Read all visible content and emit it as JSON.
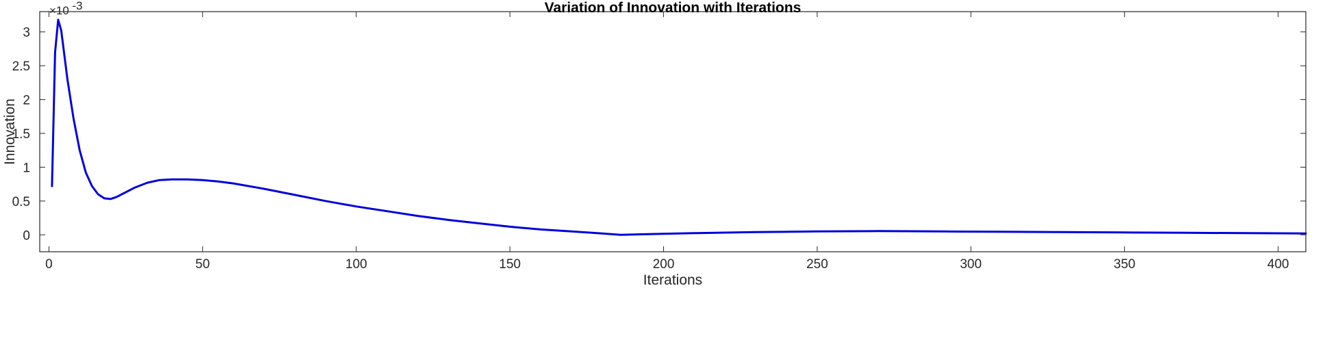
{
  "chart_data": {
    "type": "line",
    "title": "Variation of Innovation with Iterations",
    "xlabel": "Iterations",
    "ylabel": "Innovation",
    "y_multiplier": {
      "base": "×10",
      "exponent": "-3"
    },
    "xlim": [
      -3,
      409
    ],
    "ylim": [
      -0.25,
      3.3
    ],
    "xticks": [
      0,
      50,
      100,
      150,
      200,
      250,
      300,
      350,
      400
    ],
    "xtick_labels": [
      "0",
      "50",
      "100",
      "150",
      "200",
      "250",
      "300",
      "350",
      "400"
    ],
    "yticks": [
      0,
      0.5,
      1,
      1.5,
      2,
      2.5,
      3
    ],
    "ytick_labels": [
      "0",
      "0.5",
      "1",
      "1.5",
      "2",
      "2.5",
      "3"
    ],
    "grid": false,
    "box": true,
    "series": [
      {
        "name": "Innovation",
        "color": "#0000dd",
        "x": [
          1,
          2,
          3,
          4,
          6,
          8,
          10,
          12,
          14,
          16,
          18,
          20,
          22,
          25,
          28,
          32,
          36,
          40,
          45,
          50,
          55,
          60,
          70,
          80,
          90,
          100,
          110,
          120,
          130,
          140,
          150,
          160,
          170,
          180,
          186,
          195,
          210,
          230,
          250,
          270,
          290,
          310,
          330,
          350,
          370,
          390,
          409
        ],
        "y": [
          0.72,
          2.7,
          3.18,
          3.02,
          2.3,
          1.72,
          1.25,
          0.92,
          0.72,
          0.6,
          0.54,
          0.53,
          0.56,
          0.63,
          0.7,
          0.77,
          0.81,
          0.82,
          0.82,
          0.81,
          0.79,
          0.76,
          0.68,
          0.59,
          0.5,
          0.42,
          0.35,
          0.28,
          0.22,
          0.17,
          0.12,
          0.08,
          0.05,
          0.02,
          0.0,
          0.01,
          0.025,
          0.04,
          0.05,
          0.055,
          0.05,
          0.045,
          0.04,
          0.035,
          0.03,
          0.025,
          0.02
        ]
      }
    ]
  }
}
